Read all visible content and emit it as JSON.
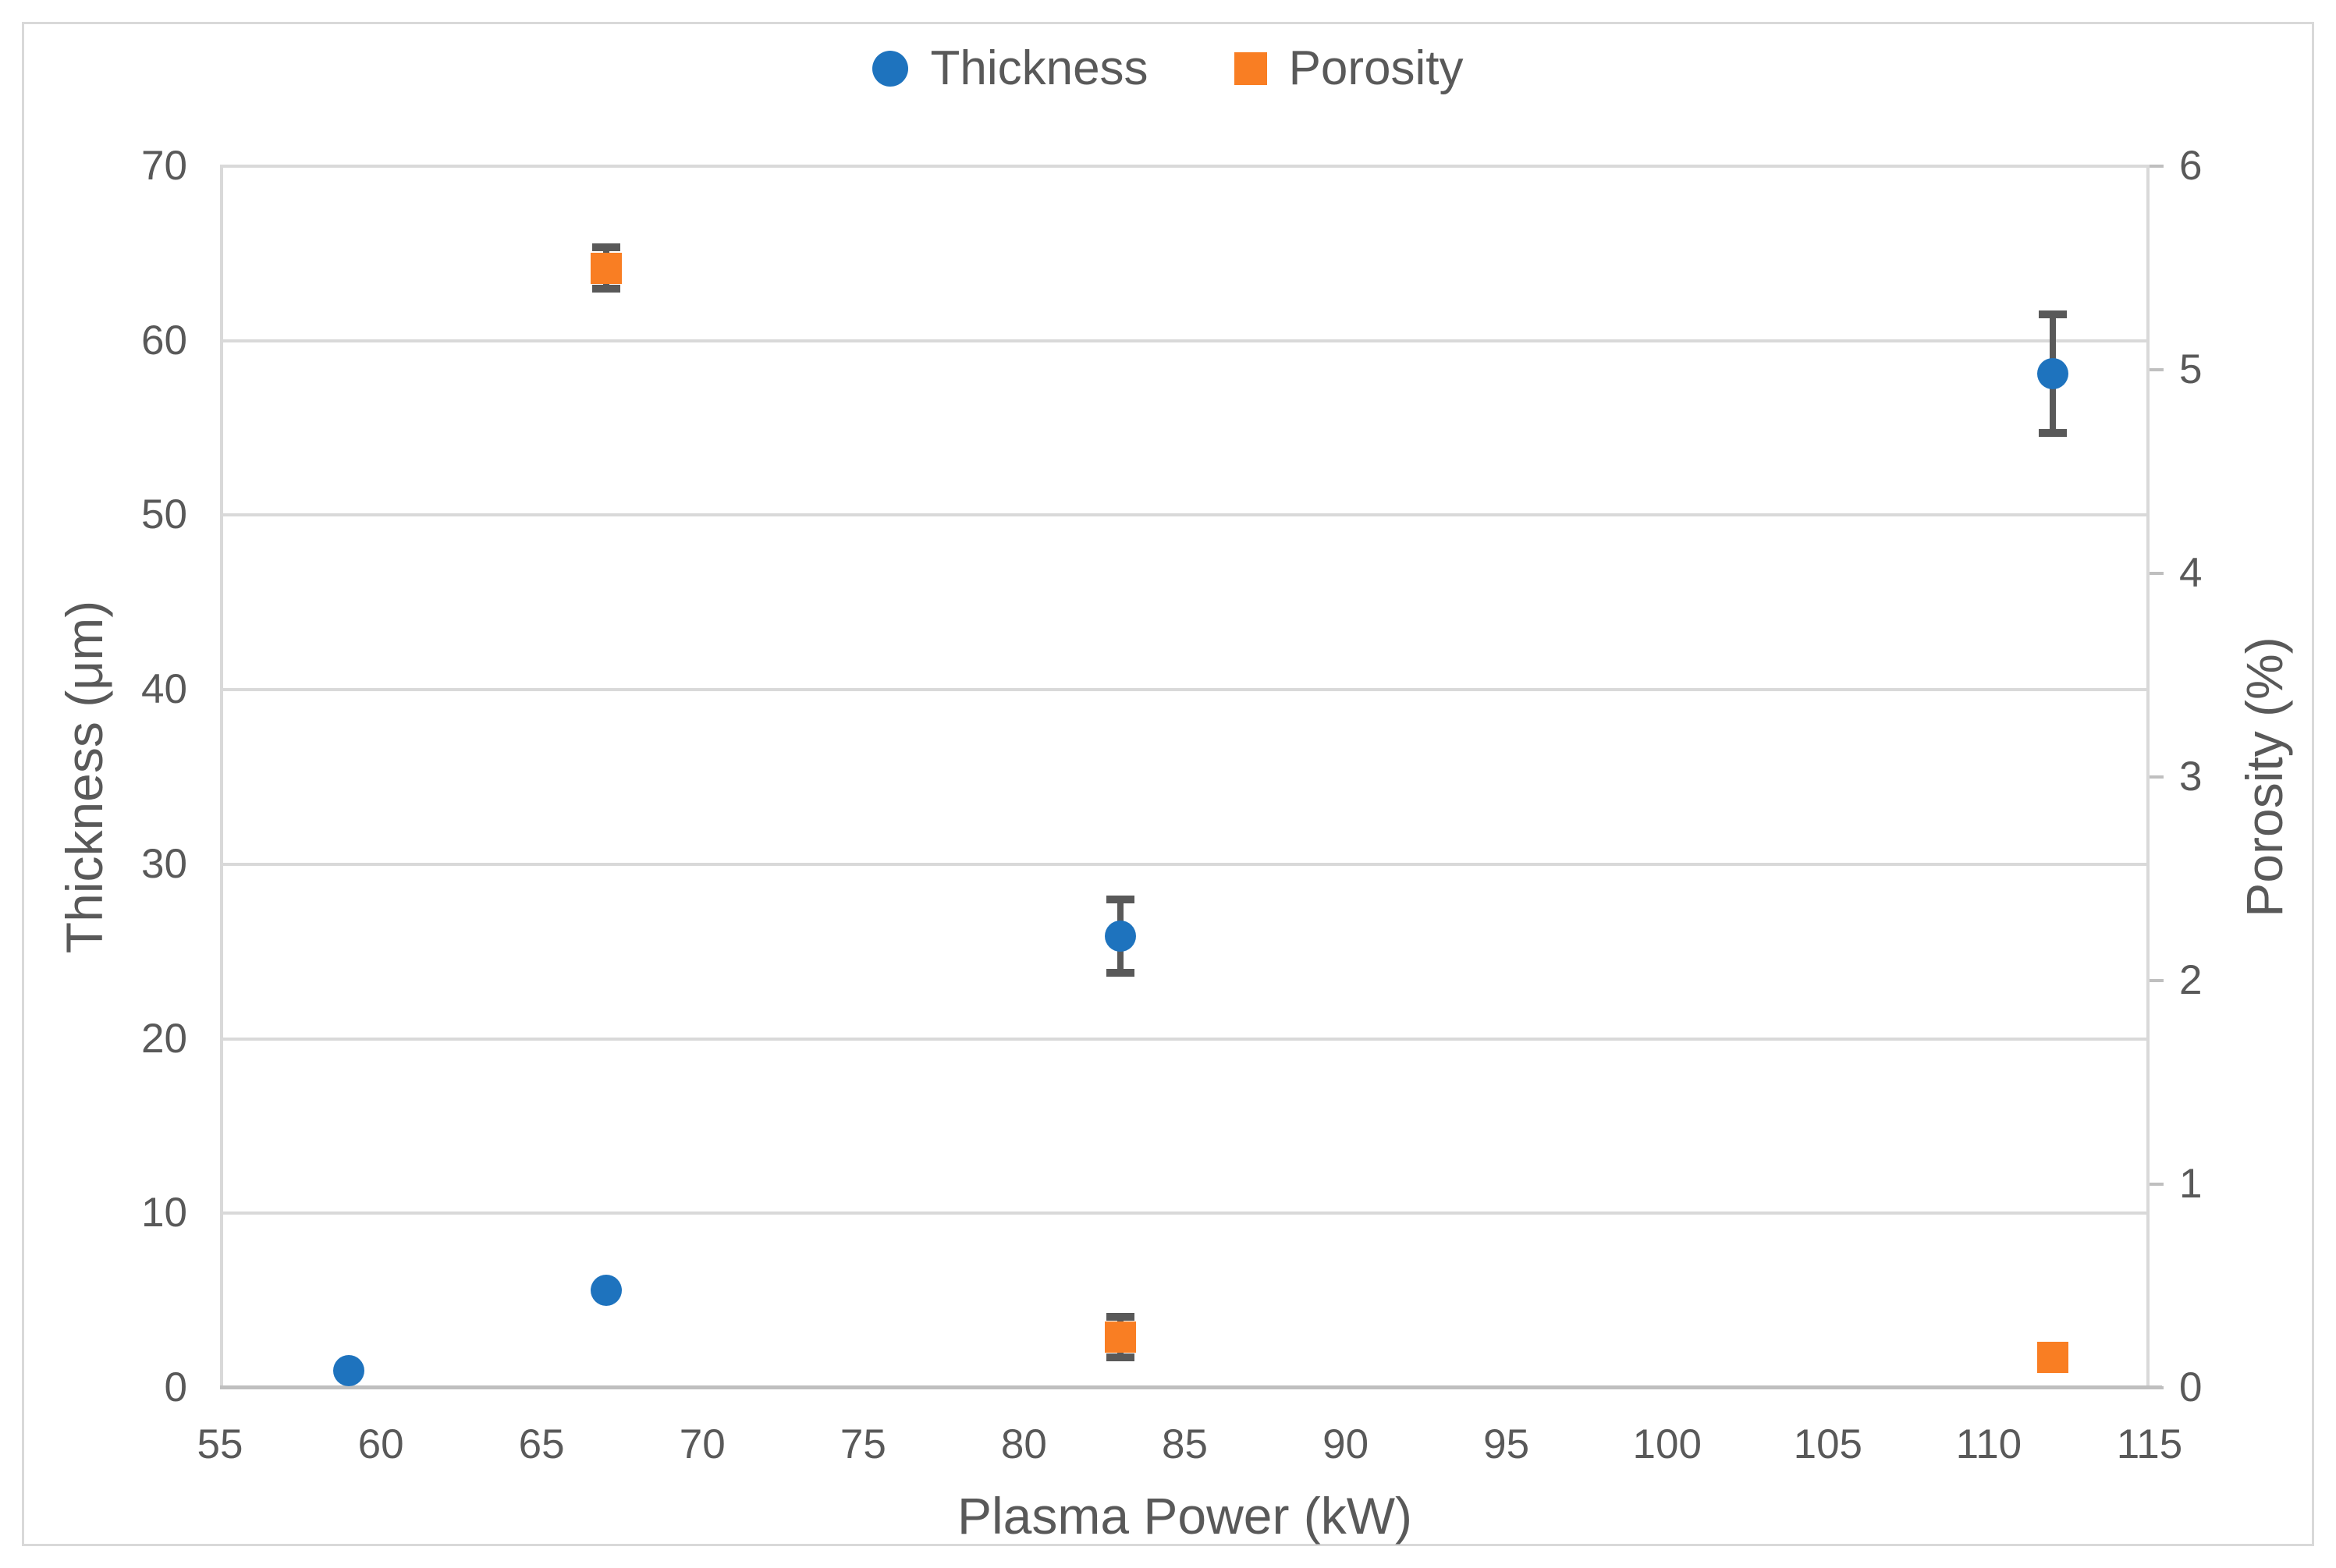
{
  "chart_data": {
    "type": "scatter",
    "title": "",
    "xlabel": "Plasma Power (kW)",
    "ylabel_left": "Thickness (μm)",
    "ylabel_right": "Porosity (%)",
    "xlim": [
      55,
      115
    ],
    "xtick_step": 5,
    "ylim_left": [
      0,
      70
    ],
    "ytick_step_left": 10,
    "ylim_right": [
      0,
      6
    ],
    "ytick_step_right": 1,
    "grid": "horizontal",
    "legend_position": "top-center",
    "series": [
      {
        "name": "Thickness",
        "axis": "left",
        "marker": "circle",
        "color": "#1e73be",
        "points": [
          {
            "x": 59,
            "y": 1.0,
            "err": 0
          },
          {
            "x": 67,
            "y": 5.6,
            "err": 0
          },
          {
            "x": 83,
            "y": 25.9,
            "err": 2.1
          },
          {
            "x": 112,
            "y": 58.1,
            "err": 3.4
          }
        ]
      },
      {
        "name": "Porosity",
        "axis": "right",
        "marker": "square",
        "color": "#f97e23",
        "points": [
          {
            "x": 67,
            "y": 5.5,
            "err": 0.1
          },
          {
            "x": 83,
            "y": 0.25,
            "err": 0.1
          },
          {
            "x": 112,
            "y": 0.15,
            "err": 0
          }
        ]
      }
    ]
  },
  "colors": {
    "text": "#595959",
    "gridline": "#d9d9d9",
    "axis_line": "#bfbfbf",
    "error_bar": "#595959",
    "figure_border": "#d9d9d9",
    "background": "#ffffff",
    "thickness_marker": "#1e73be",
    "porosity_marker": "#f97e23"
  }
}
